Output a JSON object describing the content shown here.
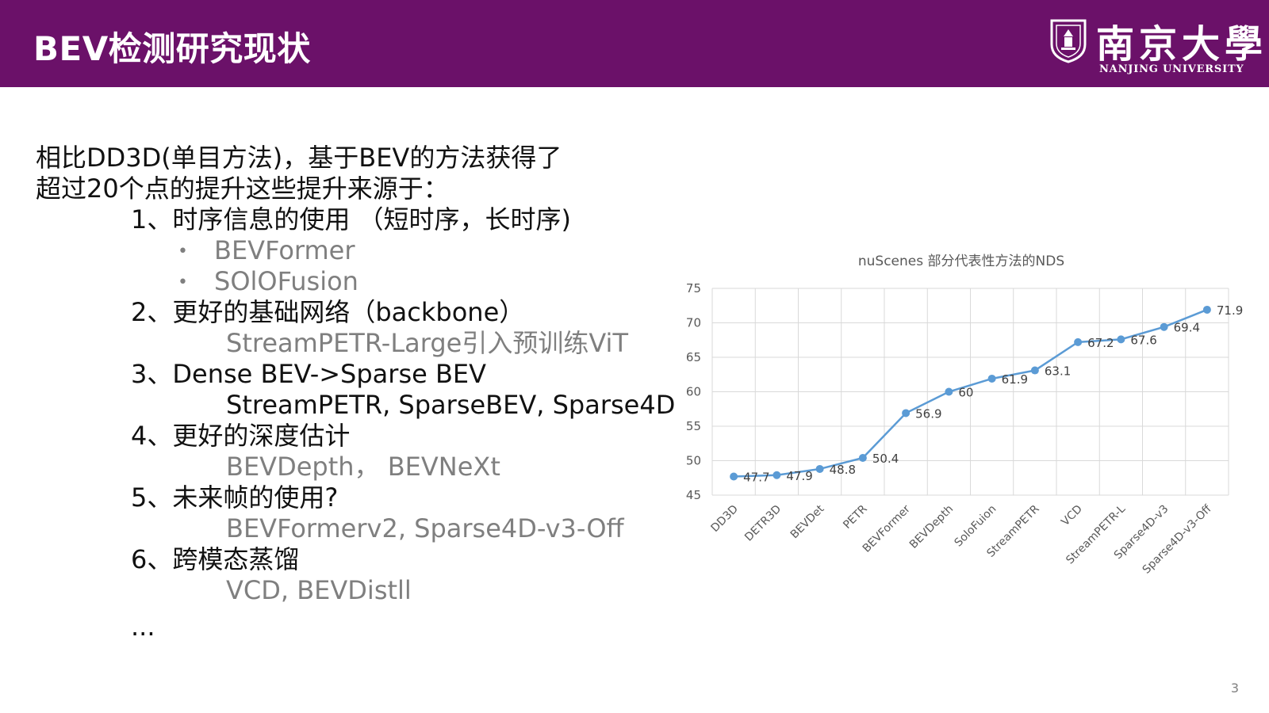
{
  "header": {
    "title": "BEV检测研究现状",
    "logo_cn": "南京大學",
    "logo_en": "NANJING UNIVERSITY",
    "color": "#6b1169"
  },
  "content": {
    "intro_line1": "相比DD3D(单目方法)，基于BEV的方法获得了",
    "intro_line2": "超过20个点的提升这些提升来源于：",
    "items": [
      {
        "heading": "1、时序信息的使用 （短时序，长时序)"
      },
      {
        "heading": "2、更好的基础网络（backbone）"
      },
      {
        "heading": "3、Dense BEV->Sparse BEV"
      },
      {
        "heading": "4、更好的深度估计"
      },
      {
        "heading": "5、未来帧的使用?"
      },
      {
        "heading": "6、跨模态蒸馏"
      }
    ],
    "bullets": [
      "BEVFormer",
      "SOlOFusion"
    ],
    "sub_lines": {
      "item2": "StreamPETR-Large引入预训练ViT",
      "item3": "StreamPETR, SparseBEV, Sparse4D",
      "item4": "BEVDepth，  BEVNeXt",
      "item5": "BEVFormerv2, Sparse4D-v3-Off",
      "item6": "VCD, BEVDistll"
    },
    "ellipsis": "..."
  },
  "page_number": "3",
  "chart_data": {
    "type": "line",
    "title": "nuScenes 部分代表性方法的NDS",
    "categories": [
      "DD3D",
      "DETR3D",
      "BEVDet",
      "PETR",
      "BEVFormer",
      "BEVDepth",
      "SoloFuion",
      "StreamPETR",
      "VCD",
      "StreamPETR-L",
      "Sparse4D-v3",
      "Sparse4D-v3-Off"
    ],
    "series": [
      {
        "values": [
          47.7,
          47.9,
          48.8,
          50.4,
          56.9,
          60,
          61.9,
          63.1,
          67.2,
          67.6,
          69.4,
          71.9
        ],
        "color": "#5b9bd5"
      }
    ],
    "ylim": [
      45,
      75
    ],
    "yticks": [
      45,
      50,
      55,
      60,
      65,
      70,
      75
    ],
    "grid": true,
    "xlabel": "",
    "ylabel": ""
  }
}
